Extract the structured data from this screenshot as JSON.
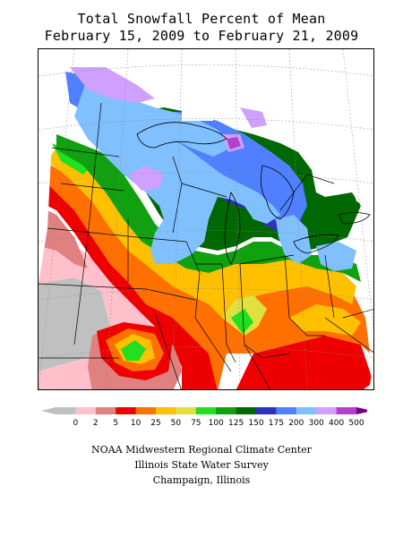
{
  "title_line1": "Total Snowfall Percent of Mean",
  "title_line2": "February 15, 2009 to February 21, 2009",
  "legend": {
    "bins": [
      {
        "label": "0",
        "color": "#c0c0c0"
      },
      {
        "label": "2",
        "color": "#ffc0cb"
      },
      {
        "label": "5",
        "color": "#e08080"
      },
      {
        "label": "10",
        "color": "#ee0000"
      },
      {
        "label": "25",
        "color": "#ff7000"
      },
      {
        "label": "50",
        "color": "#ffc000"
      },
      {
        "label": "75",
        "color": "#e0e040"
      },
      {
        "label": "100",
        "color": "#20e020"
      },
      {
        "label": "125",
        "color": "#10a010"
      },
      {
        "label": "150",
        "color": "#006800"
      },
      {
        "label": "175",
        "color": "#3030c0"
      },
      {
        "label": "200",
        "color": "#5080ff"
      },
      {
        "label": "300",
        "color": "#80c0ff"
      },
      {
        "label": "400",
        "color": "#d0a0ff"
      },
      {
        "label": "500",
        "color": "#b040d0"
      }
    ],
    "overflow_color": "#700080"
  },
  "credits": {
    "line1": "NOAA Midwestern Regional Climate Center",
    "line2": "Illinois State Water Survey",
    "line3": "Champaign, Illinois"
  }
}
